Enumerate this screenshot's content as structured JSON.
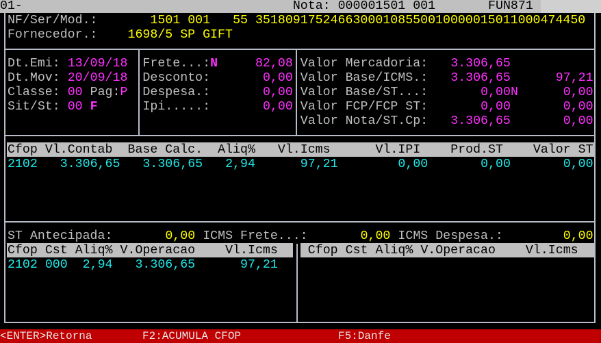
{
  "title_bar": {
    "screen_id": "01-",
    "nota": "Nota: 000001501 001",
    "program": "FUN871"
  },
  "header": {
    "nf_label": "NF/Ser/Mod.:",
    "nf_value": "1501 001",
    "modelo": "55",
    "chave": "35180917524663000108550010000015011000474450",
    "fornecedor_label": "Fornecedor.:",
    "fornecedor_value": "1698/5 SP GIFT"
  },
  "dates": {
    "dt_emi_label": "Dt.Emi:",
    "dt_emi": "13/09/18",
    "dt_mov_label": "Dt.Mov:",
    "dt_mov": "20/09/18",
    "classe_label": "Classe:",
    "classe": "00",
    "pag_label": "Pag:",
    "pag": "P",
    "sit_label": "Sit/St:",
    "sit": "00",
    "st": "F"
  },
  "costs": {
    "frete_label": "Frete...:",
    "frete_flag": "N",
    "frete": "82,08",
    "desconto_label": "Desconto:",
    "desconto": "0,00",
    "despesa_label": "Despesa.:",
    "despesa": "0,00",
    "ipi_label": "Ipi.....:",
    "ipi": "0,00"
  },
  "totals": {
    "mercadoria_label": "Valor Mercadoria:",
    "mercadoria": "3.306,65",
    "base_icms_label": "Valor Base/ICMS.:",
    "base_icms": "3.306,65",
    "icms": "97,21",
    "base_st_label": "Valor Base/ST...:",
    "base_st": "0,00",
    "base_st_flag": "N",
    "st": "0,00",
    "fcp_label": "Valor FCP/FCP ST:",
    "fcp": "0,00",
    "fcp_st": "0,00",
    "nota_label": "Valor Nota/ST.Cp:",
    "nota": "3.306,65",
    "st_cp": "0,00"
  },
  "cfop_table": {
    "columns": [
      "Cfop",
      "Vl.Contab",
      "Base Calc.",
      "Aliq%",
      "Vl.Icms",
      "Vl.IPI",
      "Prod.ST",
      "Valor ST"
    ],
    "rows": [
      [
        "2102",
        "3.306,65",
        "3.306,65",
        "2,94",
        "97,21",
        "0,00",
        "0,00",
        "0,00"
      ]
    ]
  },
  "st_line": {
    "st_antecipada_label": "ST Antecipada:",
    "st_antecipada": "0,00",
    "icms_frete_label": "ICMS Frete...:",
    "icms_frete": "0,00",
    "icms_despesa_label": "ICMS Despesa.:",
    "icms_despesa": "0,00"
  },
  "left_table": {
    "columns": [
      "Cfop",
      "Cst",
      "Aliq%",
      "V.Operacao",
      "Vl.Icms"
    ],
    "rows": [
      [
        "2102",
        "000",
        "2,94",
        "3.306,65",
        "97,21"
      ]
    ]
  },
  "right_table": {
    "columns": [
      "Cfop",
      "Cst",
      "Aliq%",
      "V.Operacao",
      "Vl.Icms"
    ],
    "rows": []
  },
  "footer": {
    "enter": "<ENTER>Retorna",
    "f2": "F2:ACUMULA CFOP",
    "f5": "F5:Danfe"
  },
  "colors": {
    "background": "#000000",
    "label": "#c0c0c0",
    "highlight_yellow": "#ffff00",
    "value_magenta": "#ff30ff",
    "table_cyan": "#20e8e8",
    "footer_red": "#c00000",
    "header_gray": "#c0c0c0"
  }
}
